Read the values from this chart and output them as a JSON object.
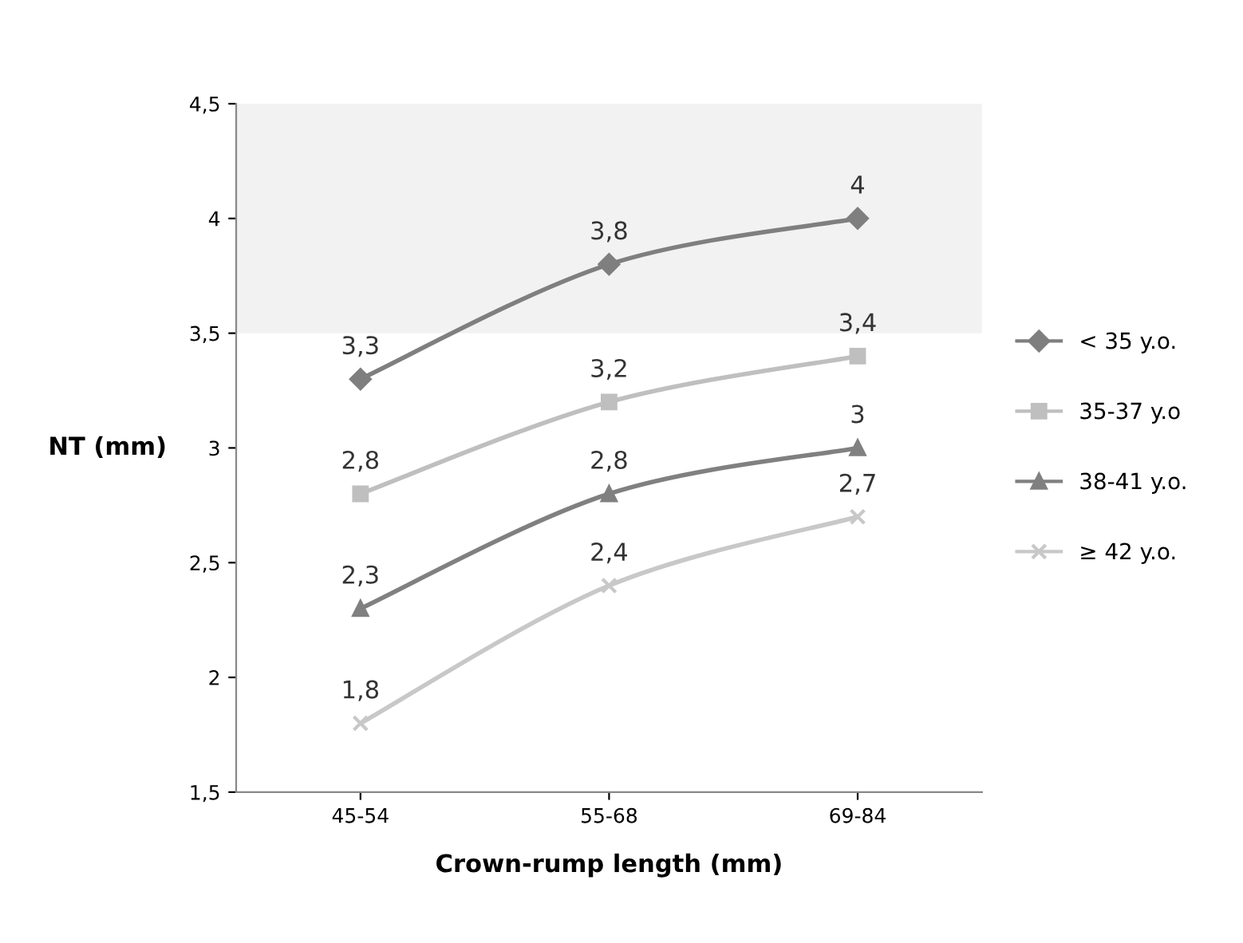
{
  "chart_data": {
    "type": "line",
    "xlabel": "Crown-rump length (mm)",
    "ylabel": "NT (mm)",
    "categories": [
      "45-54",
      "55-68",
      "69-84"
    ],
    "ylim": [
      1.5,
      4.5
    ],
    "yticks": [
      {
        "value": 1.5,
        "label": "1,5"
      },
      2,
      {
        "value": 2.5,
        "label": "2,5"
      },
      3,
      {
        "value": 3.5,
        "label": "3,5"
      },
      4,
      {
        "value": 4.5,
        "label": "4,5"
      }
    ],
    "grid": false,
    "legend": "right",
    "bands": [
      {
        "axis": "y",
        "from": 3.5,
        "to": 4.5,
        "color": "#f2f2f2"
      }
    ],
    "series": [
      {
        "name": "< 35 y.o.",
        "color": "#7f7f7f",
        "marker": "diamond",
        "values": [
          3.3,
          3.8,
          4.0
        ],
        "value_labels": [
          "3,3",
          "3,8",
          "4"
        ]
      },
      {
        "name": "35-37 y.o",
        "color": "#bfbfbf",
        "marker": "square",
        "values": [
          2.8,
          3.2,
          3.4
        ],
        "value_labels": [
          "2,8",
          "3,2",
          "3,4"
        ]
      },
      {
        "name": "38-41 y.o.",
        "color": "#808080",
        "marker": "triangle",
        "values": [
          2.3,
          2.8,
          3.0
        ],
        "value_labels": [
          "2,3",
          "2,8",
          "3"
        ]
      },
      {
        "name": "≥ 42 y.o.",
        "color": "#c8c8c8",
        "marker": "cross",
        "values": [
          1.8,
          2.4,
          2.7
        ],
        "value_labels": [
          "1,8",
          "2,4",
          "2,7"
        ]
      }
    ]
  }
}
